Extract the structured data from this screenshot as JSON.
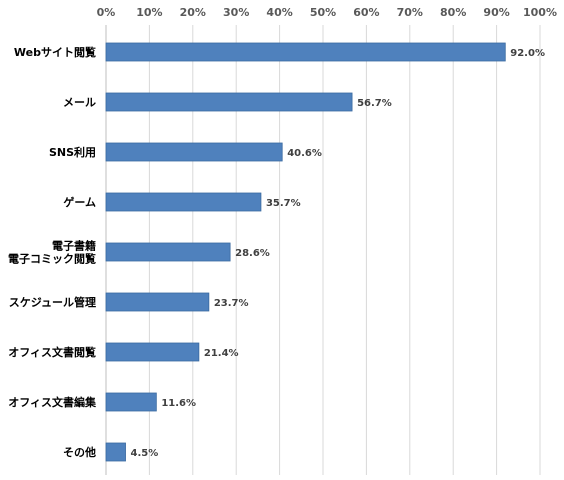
{
  "chart_data": {
    "type": "bar",
    "orientation": "horizontal",
    "categories": [
      "Webサイト閲覧",
      "メール",
      "SNS利用",
      "ゲーム",
      "電子書籍\n電子コミック閲覧",
      "スケジュール管理",
      "オフィス文書閲覧",
      "オフィス文書編集",
      "その他"
    ],
    "values": [
      92.0,
      56.7,
      40.6,
      35.7,
      28.6,
      23.7,
      21.4,
      11.6,
      4.5
    ],
    "data_labels": [
      "92.0%",
      "56.7%",
      "40.6%",
      "35.7%",
      "28.6%",
      "23.7%",
      "21.4%",
      "11.6%",
      "4.5%"
    ],
    "x_ticks": [
      "0%",
      "10%",
      "20%",
      "30%",
      "40%",
      "50%",
      "60%",
      "70%",
      "80%",
      "90%",
      "100%"
    ],
    "xlim": [
      0,
      100
    ],
    "axis_position": "top",
    "grid": true,
    "bar_color": "#4f81bd",
    "bar_border_color": "#3a6aa0",
    "title": "",
    "xlabel": "",
    "ylabel": ""
  }
}
